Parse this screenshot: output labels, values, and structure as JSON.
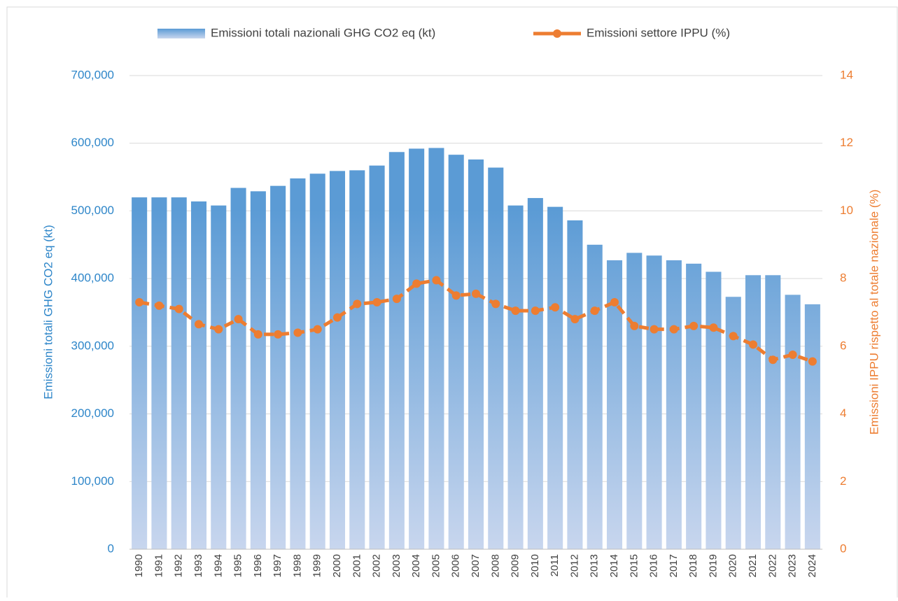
{
  "chart_data": {
    "type": "bar_line",
    "categories": [
      "1990",
      "1991",
      "1992",
      "1993",
      "1994",
      "1995",
      "1996",
      "1997",
      "1998",
      "1999",
      "2000",
      "2001",
      "2002",
      "2003",
      "2004",
      "2005",
      "2006",
      "2007",
      "2008",
      "2009",
      "2010",
      "2011",
      "2012",
      "2013",
      "2014",
      "2015",
      "2016",
      "2017",
      "2018",
      "2019",
      "2020",
      "2021",
      "2022",
      "2023",
      "2024"
    ],
    "series": [
      {
        "name": "Emissioni totali nazionali GHG CO2 eq (kt)",
        "type": "bar",
        "color": "#5b9bd5",
        "axis": "y",
        "values": [
          520000,
          520000,
          520000,
          514000,
          508000,
          534000,
          529000,
          537000,
          548000,
          555000,
          559000,
          560000,
          567000,
          587000,
          592000,
          593000,
          583000,
          576000,
          564000,
          508000,
          519000,
          506000,
          486000,
          450000,
          427000,
          438000,
          434000,
          427000,
          422000,
          410000,
          373000,
          405000,
          405000,
          376000,
          362000
        ]
      },
      {
        "name": "Emissioni settore IPPU (%)",
        "type": "line",
        "color": "#ed7d31",
        "axis": "y2",
        "values": [
          7.3,
          7.2,
          7.1,
          6.65,
          6.5,
          6.8,
          6.35,
          6.35,
          6.4,
          6.5,
          6.85,
          7.25,
          7.3,
          7.4,
          7.85,
          7.95,
          7.5,
          7.55,
          7.25,
          7.05,
          7.05,
          7.15,
          6.8,
          7.05,
          7.3,
          6.6,
          6.5,
          6.5,
          6.6,
          6.55,
          6.3,
          6.05,
          5.6,
          5.75,
          5.55
        ]
      }
    ],
    "y_label": "Emissioni totali  GHG CO2 eq (kt)",
    "y2_label": "Emissioni IPPU rispetto al totale nazionale (%)",
    "ylim": [
      0,
      700000
    ],
    "yticks": [
      0,
      {
        "value": 100000,
        "label": "100,000"
      },
      {
        "value": 200000,
        "label": "200,000"
      },
      {
        "value": 300000,
        "label": "300,000"
      },
      {
        "value": 400000,
        "label": "400,000"
      },
      {
        "value": 500000,
        "label": "500,000"
      },
      {
        "value": 600000,
        "label": "600,000"
      },
      {
        "value": 700000,
        "label": "700,000"
      }
    ],
    "y2lim": [
      0,
      14
    ],
    "y2ticks": [
      0,
      2,
      4,
      6,
      8,
      10,
      12,
      14
    ],
    "grid": true,
    "legend": "top"
  }
}
